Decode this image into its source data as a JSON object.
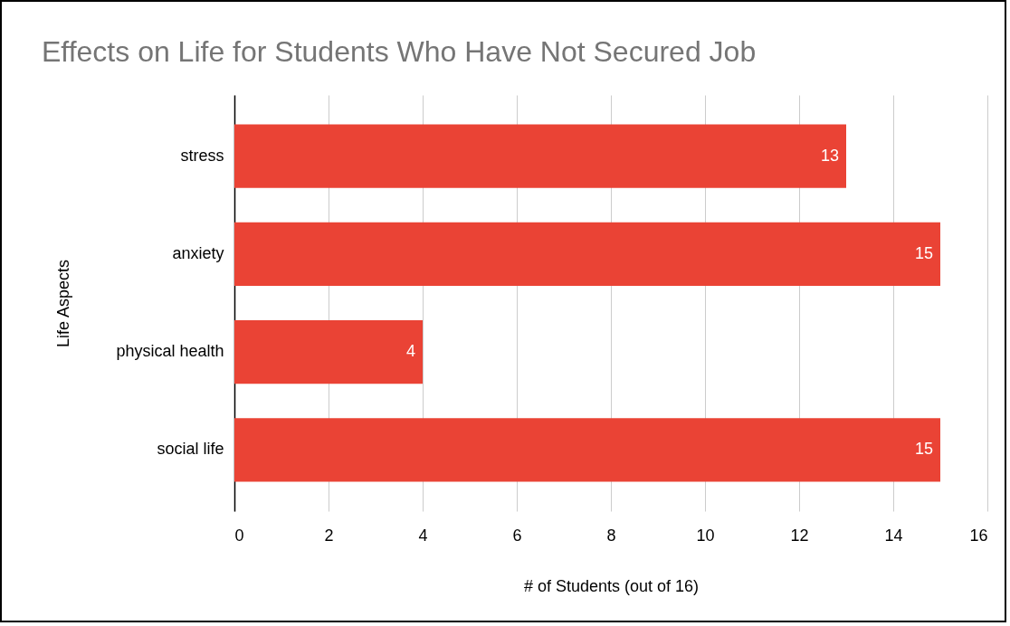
{
  "chart_data": {
    "type": "bar",
    "orientation": "horizontal",
    "title": "Effects on Life for Students Who Have Not Secured Job",
    "xlabel": "# of Students (out of 16)",
    "ylabel": "Life Aspects",
    "categories": [
      "stress",
      "anxiety",
      "physical health",
      "social life"
    ],
    "values": [
      13,
      15,
      4,
      15
    ],
    "color": "#ea4335",
    "xlim": [
      0,
      16
    ],
    "xticks": [
      0,
      2,
      4,
      6,
      8,
      10,
      12,
      14,
      16
    ],
    "grid": "x",
    "data_labels": true
  }
}
